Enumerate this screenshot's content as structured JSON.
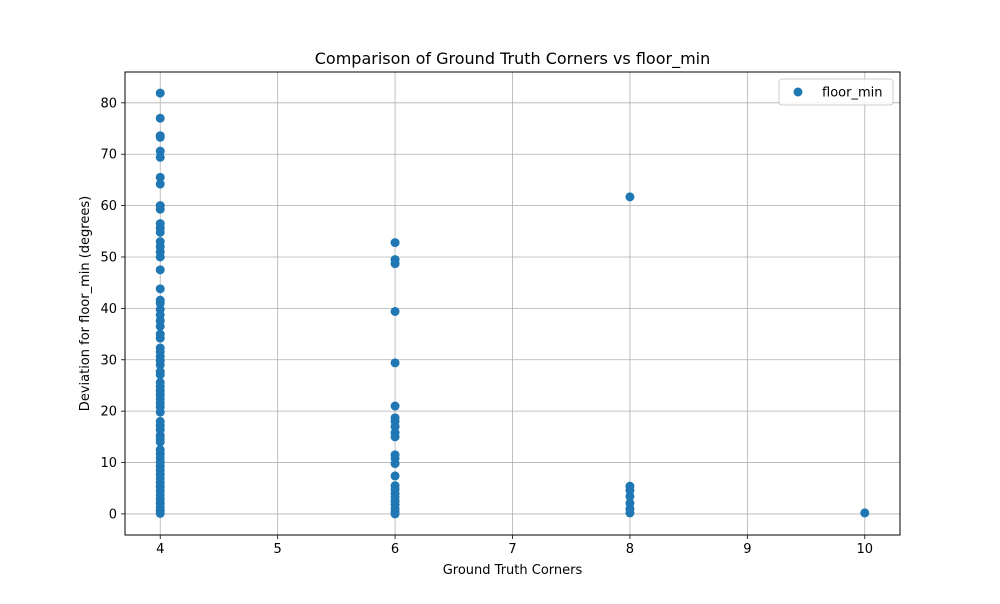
{
  "chart_data": {
    "type": "scatter",
    "title": "Comparison of Ground Truth Corners vs floor_min",
    "xlabel": "Ground Truth Corners",
    "ylabel": "Deviation for floor_min (degrees)",
    "xlim": [
      3.7,
      10.3
    ],
    "ylim": [
      -4.1,
      86.0
    ],
    "xticks": [
      4,
      5,
      6,
      7,
      8,
      9,
      10
    ],
    "yticks": [
      0,
      10,
      20,
      30,
      40,
      50,
      60,
      70,
      80
    ],
    "grid": true,
    "legend": {
      "position": "top-right",
      "entries": [
        "floor_min"
      ]
    },
    "series": [
      {
        "name": "floor_min",
        "color": "#1f77b4",
        "points": [
          [
            4,
            81.9
          ],
          [
            4,
            77.0
          ],
          [
            4,
            73.6
          ],
          [
            4,
            73.3
          ],
          [
            4,
            70.6
          ],
          [
            4,
            69.4
          ],
          [
            4,
            65.5
          ],
          [
            4,
            64.2
          ],
          [
            4,
            60.0
          ],
          [
            4,
            59.3
          ],
          [
            4,
            56.5
          ],
          [
            4,
            55.6
          ],
          [
            4,
            54.8
          ],
          [
            4,
            53.0
          ],
          [
            4,
            52.0
          ],
          [
            4,
            51.0
          ],
          [
            4,
            50.0
          ],
          [
            4,
            47.5
          ],
          [
            4,
            43.8
          ],
          [
            4,
            41.6
          ],
          [
            4,
            41.0
          ],
          [
            4,
            39.8
          ],
          [
            4,
            38.7
          ],
          [
            4,
            37.6
          ],
          [
            4,
            36.5
          ],
          [
            4,
            35.0
          ],
          [
            4,
            34.2
          ],
          [
            4,
            32.3
          ],
          [
            4,
            31.5
          ],
          [
            4,
            30.6
          ],
          [
            4,
            29.8
          ],
          [
            4,
            29.0
          ],
          [
            4,
            27.7
          ],
          [
            4,
            27.1
          ],
          [
            4,
            25.6
          ],
          [
            4,
            24.8
          ],
          [
            4,
            24.0
          ],
          [
            4,
            23.2
          ],
          [
            4,
            22.4
          ],
          [
            4,
            21.6
          ],
          [
            4,
            20.8
          ],
          [
            4,
            19.8
          ],
          [
            4,
            18.0
          ],
          [
            4,
            17.2
          ],
          [
            4,
            16.4
          ],
          [
            4,
            15.3
          ],
          [
            4,
            14.6
          ],
          [
            4,
            14.0
          ],
          [
            4,
            12.5
          ],
          [
            4,
            11.7
          ],
          [
            4,
            10.9
          ],
          [
            4,
            10.1
          ],
          [
            4,
            9.3
          ],
          [
            4,
            8.5
          ],
          [
            4,
            7.7
          ],
          [
            4,
            6.9
          ],
          [
            4,
            6.1
          ],
          [
            4,
            5.3
          ],
          [
            4,
            4.5
          ],
          [
            4,
            3.7
          ],
          [
            4,
            2.9
          ],
          [
            4,
            2.1
          ],
          [
            4,
            1.3
          ],
          [
            4,
            0.6
          ],
          [
            4,
            0.1
          ],
          [
            6,
            52.8
          ],
          [
            6,
            49.5
          ],
          [
            6,
            48.7
          ],
          [
            6,
            39.4
          ],
          [
            6,
            29.4
          ],
          [
            6,
            21.0
          ],
          [
            6,
            18.7
          ],
          [
            6,
            18.0
          ],
          [
            6,
            17.0
          ],
          [
            6,
            15.8
          ],
          [
            6,
            15.0
          ],
          [
            6,
            11.5
          ],
          [
            6,
            10.8
          ],
          [
            6,
            9.8
          ],
          [
            6,
            7.4
          ],
          [
            6,
            5.5
          ],
          [
            6,
            4.8
          ],
          [
            6,
            4.0
          ],
          [
            6,
            3.3
          ],
          [
            6,
            2.5
          ],
          [
            6,
            1.8
          ],
          [
            6,
            1.0
          ],
          [
            6,
            0.4
          ],
          [
            6,
            0.0
          ],
          [
            8,
            61.7
          ],
          [
            8,
            5.4
          ],
          [
            8,
            4.6
          ],
          [
            8,
            3.4
          ],
          [
            8,
            2.1
          ],
          [
            8,
            1.0
          ],
          [
            8,
            0.2
          ],
          [
            10,
            0.2
          ]
        ]
      }
    ]
  }
}
